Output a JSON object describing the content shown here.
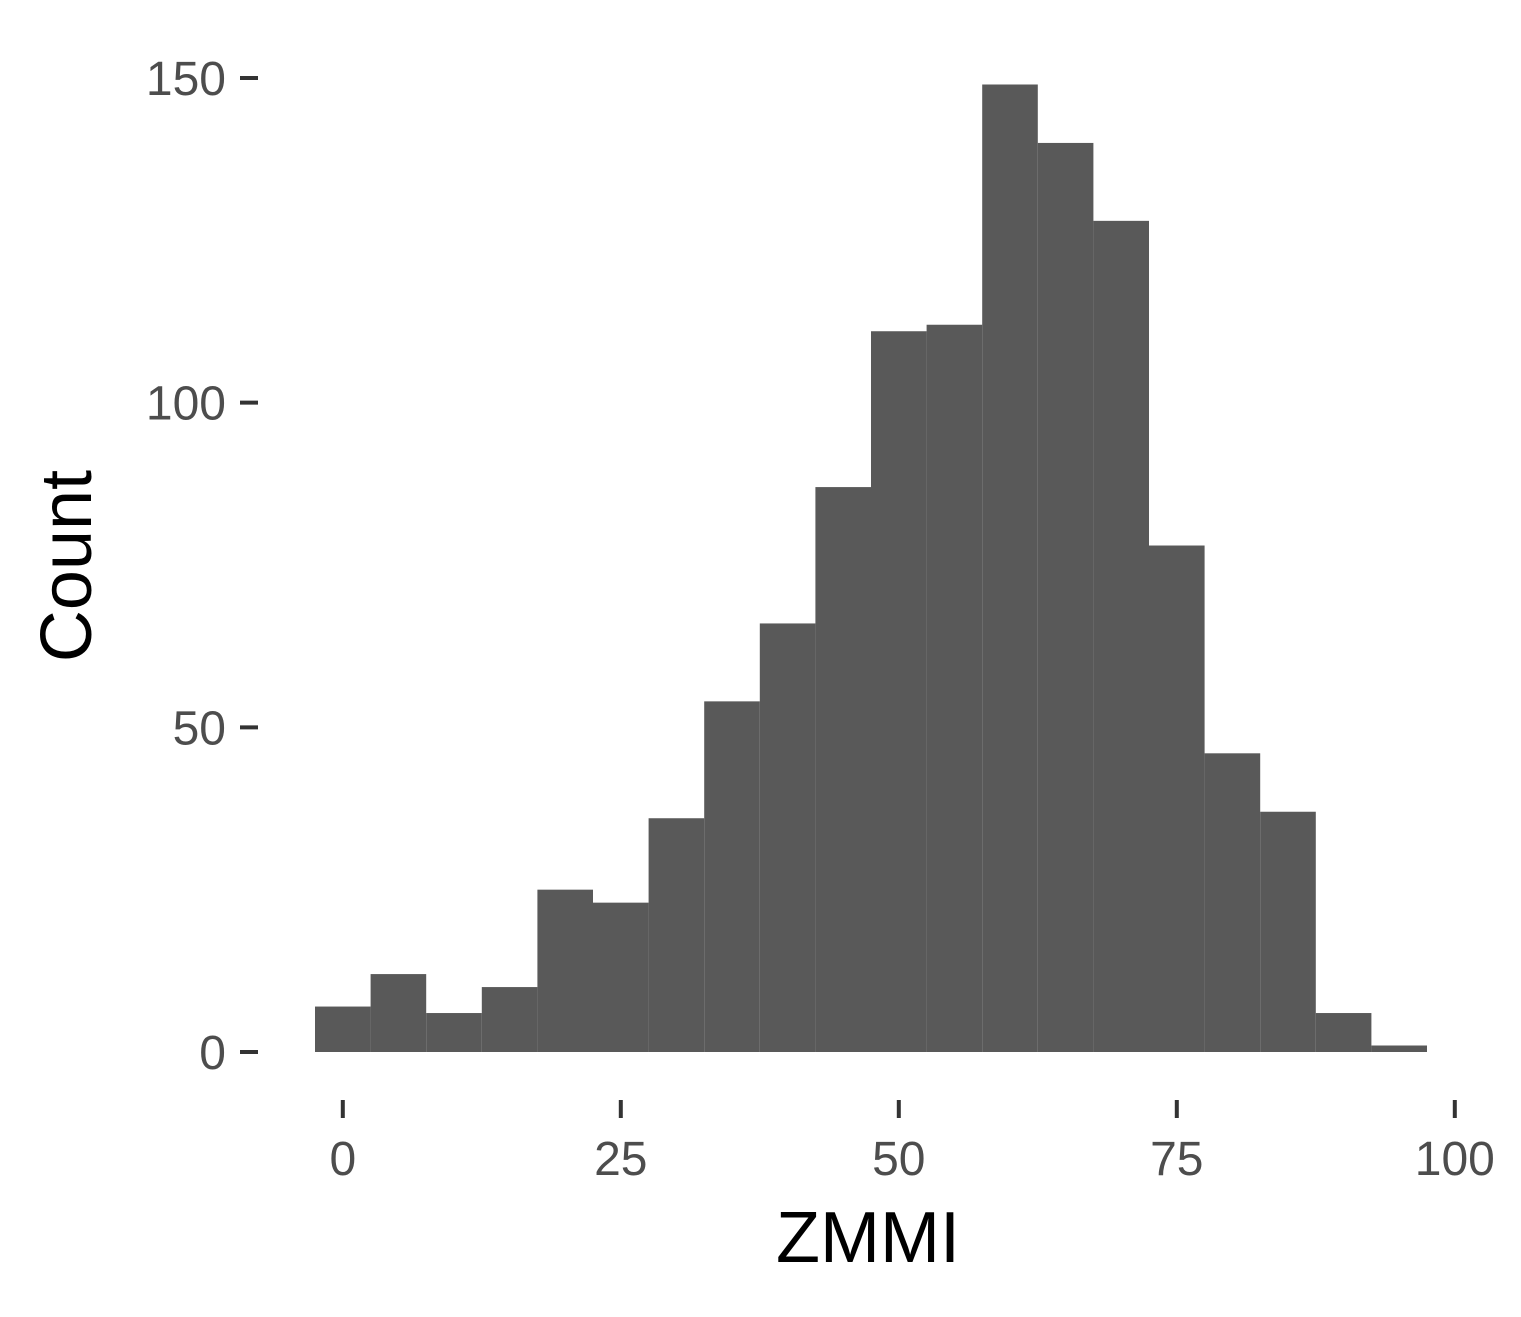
{
  "chart_data": {
    "type": "bar",
    "title": "",
    "xlabel": "ZMMI",
    "ylabel": "Count",
    "bin_width": 5,
    "bins": [
      {
        "x_start": -2.5,
        "x_end": 2.5,
        "count": 7
      },
      {
        "x_start": 2.5,
        "x_end": 7.5,
        "count": 12
      },
      {
        "x_start": 7.5,
        "x_end": 12.5,
        "count": 6
      },
      {
        "x_start": 12.5,
        "x_end": 17.5,
        "count": 10
      },
      {
        "x_start": 17.5,
        "x_end": 22.5,
        "count": 25
      },
      {
        "x_start": 22.5,
        "x_end": 27.5,
        "count": 23
      },
      {
        "x_start": 27.5,
        "x_end": 32.5,
        "count": 36
      },
      {
        "x_start": 32.5,
        "x_end": 37.5,
        "count": 54
      },
      {
        "x_start": 37.5,
        "x_end": 42.5,
        "count": 66
      },
      {
        "x_start": 42.5,
        "x_end": 47.5,
        "count": 87
      },
      {
        "x_start": 47.5,
        "x_end": 52.5,
        "count": 111
      },
      {
        "x_start": 52.5,
        "x_end": 57.5,
        "count": 112
      },
      {
        "x_start": 57.5,
        "x_end": 62.5,
        "count": 149
      },
      {
        "x_start": 62.5,
        "x_end": 67.5,
        "count": 140
      },
      {
        "x_start": 67.5,
        "x_end": 72.5,
        "count": 128
      },
      {
        "x_start": 72.5,
        "x_end": 77.5,
        "count": 78
      },
      {
        "x_start": 77.5,
        "x_end": 82.5,
        "count": 46
      },
      {
        "x_start": 82.5,
        "x_end": 87.5,
        "count": 37
      },
      {
        "x_start": 87.5,
        "x_end": 92.5,
        "count": 6
      },
      {
        "x_start": 92.5,
        "x_end": 97.5,
        "count": 1
      }
    ],
    "xlim": [
      -2.5,
      97.5
    ],
    "ylim": [
      0,
      150
    ],
    "x_ticks": [
      0,
      25,
      50,
      75,
      100
    ],
    "x_tick_labels": [
      "0",
      "25",
      "50",
      "75",
      "100"
    ],
    "y_ticks": [
      0,
      50,
      100,
      150
    ],
    "y_tick_labels": [
      "0",
      "50",
      "100",
      "150"
    ],
    "grid": false,
    "legend": "none",
    "bar_color": "#595959",
    "tick_color": "#333333",
    "tick_label_color": "#4d4d4d"
  }
}
